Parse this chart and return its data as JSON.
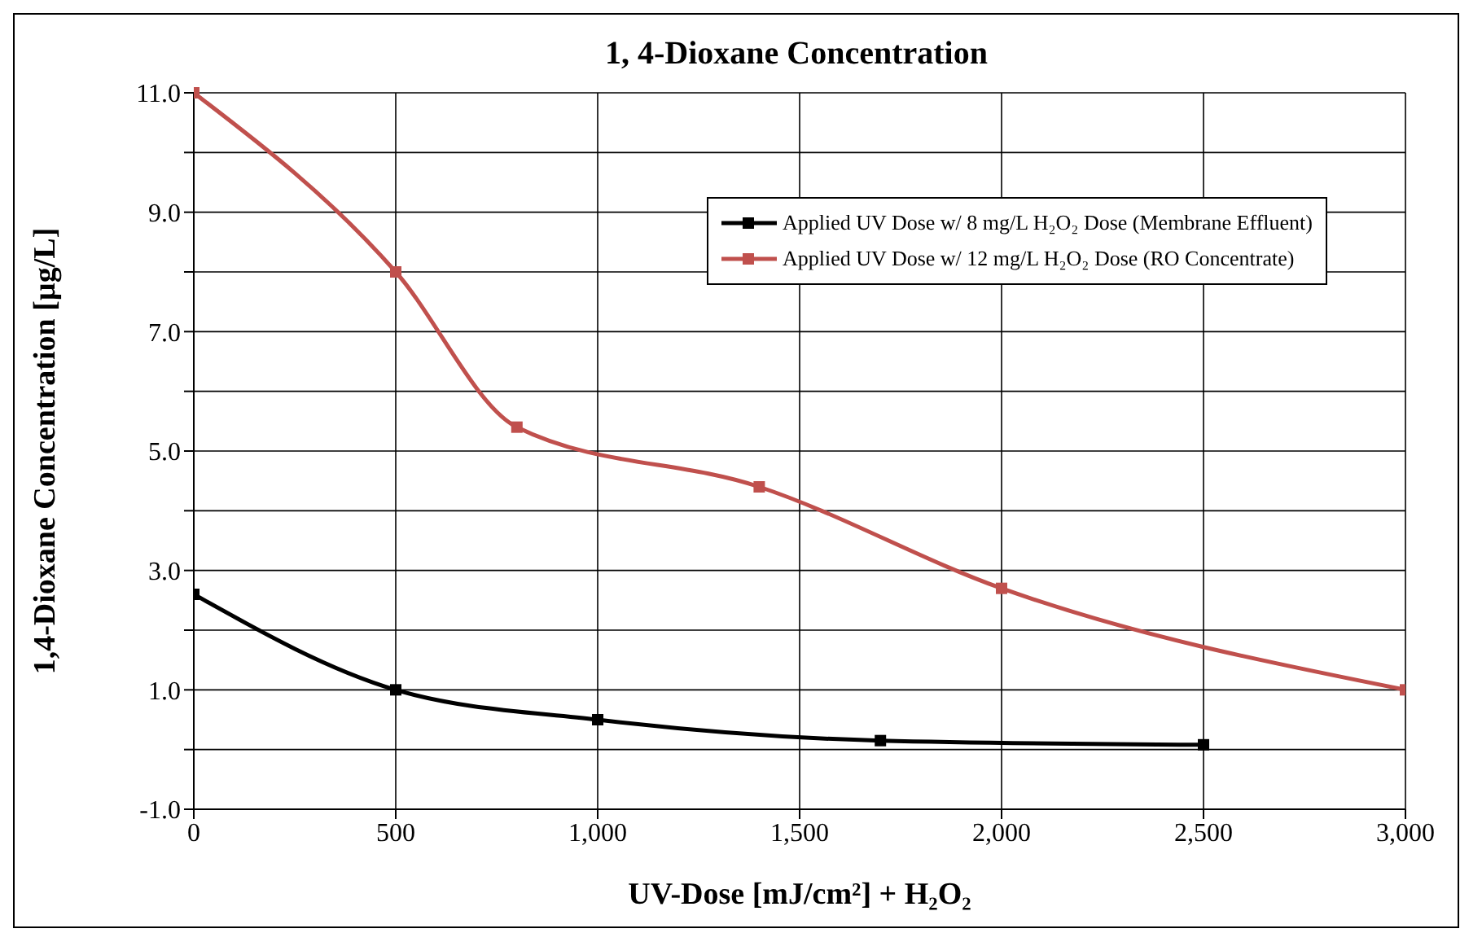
{
  "chart_data": {
    "type": "line",
    "title": "1, 4-Dioxane Concentration",
    "xlabel": "UV-Dose [mJ/cm²] + H₂O₂",
    "ylabel": "1,4-Dioxane Concentration [µg/L]",
    "xlim": [
      0,
      3000
    ],
    "xticks": [
      0,
      500,
      {
        "value": 1000,
        "label": "1,000"
      },
      {
        "value": 1500,
        "label": "1,500"
      },
      {
        "value": 2000,
        "label": "2,000"
      },
      {
        "value": 2500,
        "label": "2,500"
      },
      {
        "value": 3000,
        "label": "3,000"
      }
    ],
    "ylim": [
      -1,
      11
    ],
    "yticks": [
      {
        "value": -1,
        "label": "-1.0"
      },
      {
        "value": 0,
        "label": null
      },
      {
        "value": 1,
        "label": "1.0"
      },
      {
        "value": 2,
        "label": null
      },
      {
        "value": 3,
        "label": "3.0"
      },
      {
        "value": 4,
        "label": null
      },
      {
        "value": 5,
        "label": "5.0"
      },
      {
        "value": 6,
        "label": null
      },
      {
        "value": 7,
        "label": "7.0"
      },
      {
        "value": 8,
        "label": null
      },
      {
        "value": 9,
        "label": "9.0"
      },
      {
        "value": 10,
        "label": null
      },
      {
        "value": 11,
        "label": "11.0"
      }
    ],
    "grid": true,
    "legend": "top right",
    "marker": "square",
    "line_style": "solid",
    "series": [
      {
        "name": "Applied UV Dose w/ 8 mg/L  H₂O₂ Dose (Membrane Effluent)",
        "color": "#000000",
        "x": [
          0,
          500,
          1000,
          1700,
          2500
        ],
        "values": [
          2.6,
          1.0,
          0.5,
          0.15,
          0.08
        ]
      },
      {
        "name": "Applied UV Dose w/ 12 mg/L  H₂O₂ Dose (RO Concentrate)",
        "color": "#c0504d",
        "x": [
          0,
          500,
          800,
          1400,
          2000,
          3000
        ],
        "values": [
          11.0,
          8.0,
          5.4,
          4.4,
          2.7,
          1.0
        ]
      }
    ]
  }
}
